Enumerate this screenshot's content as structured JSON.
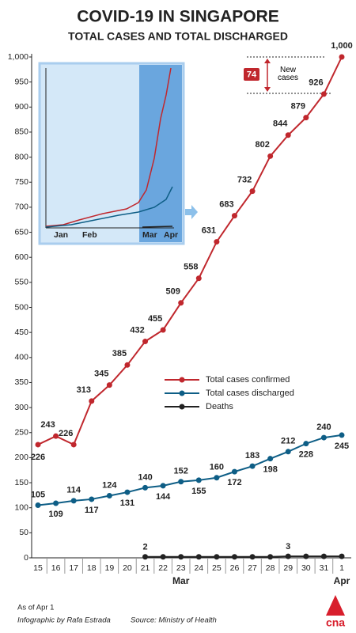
{
  "chart_data": {
    "type": "line",
    "title": "COVID-19 IN SINGAPORE",
    "subtitle": "TOTAL CASES AND TOTAL DISCHARGED",
    "categories": [
      "15",
      "16",
      "17",
      "18",
      "19",
      "20",
      "21",
      "22",
      "23",
      "24",
      "25",
      "26",
      "27",
      "28",
      "29",
      "30",
      "31",
      "1"
    ],
    "month_labels": [
      "Mar",
      "Apr"
    ],
    "series": [
      {
        "name": "Total cases confirmed",
        "color": "#c0272d",
        "values": [
          226,
          243,
          226,
          313,
          345,
          385,
          432,
          455,
          509,
          558,
          631,
          683,
          732,
          802,
          844,
          879,
          926,
          1000
        ],
        "value_labels": [
          "226",
          "243",
          "226",
          "313",
          "345",
          "385",
          "432",
          "455",
          "509",
          "558",
          "631",
          "683",
          "732",
          "802",
          "844",
          "879",
          "926",
          "1,000"
        ]
      },
      {
        "name": "Total cases discharged",
        "color": "#0e5e86",
        "values": [
          105,
          109,
          114,
          117,
          124,
          131,
          140,
          144,
          152,
          155,
          160,
          172,
          183,
          198,
          212,
          228,
          240,
          245
        ]
      },
      {
        "name": "Deaths",
        "color": "#222222",
        "values": [
          null,
          null,
          null,
          null,
          null,
          null,
          2,
          2,
          2,
          2,
          2,
          2,
          2,
          2,
          3,
          3,
          3,
          3
        ]
      }
    ],
    "ylim": [
      0,
      1000
    ],
    "yticks": [
      0,
      50,
      100,
      150,
      200,
      250,
      300,
      350,
      400,
      450,
      500,
      550,
      600,
      650,
      700,
      750,
      800,
      850,
      900,
      950,
      {
        "value": 1000,
        "label": "1,000"
      }
    ],
    "grid": false,
    "legend": "right",
    "annotation": {
      "value": "74",
      "label": "New cases"
    },
    "inset_labels": [
      "Jan",
      "Feb",
      "Mar",
      "Apr"
    ],
    "footer": {
      "date": "As of Apr 1",
      "credit": "Infographic by Rafa Estrada",
      "source": "Source: Ministry of Health",
      "logo": "cna"
    }
  }
}
